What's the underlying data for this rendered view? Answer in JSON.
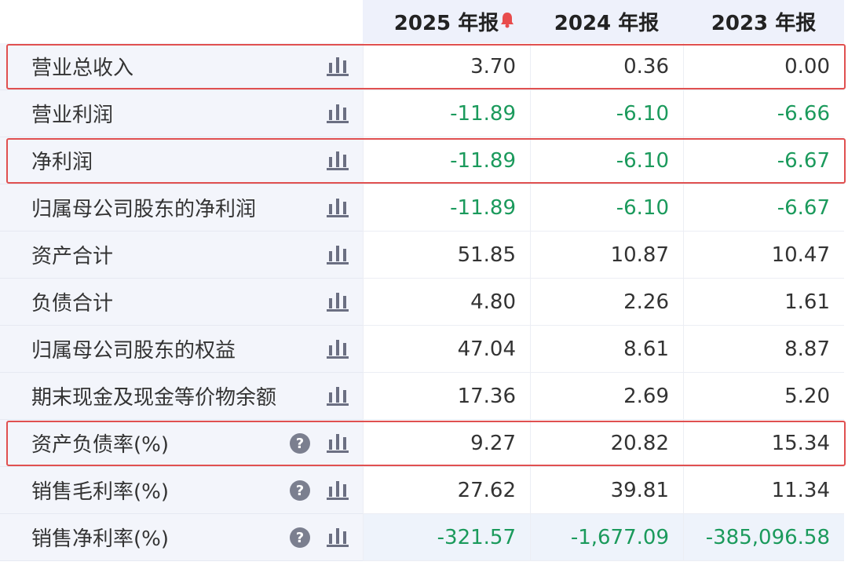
{
  "header": {
    "columns": [
      "2025 年报",
      "2024 年报",
      "2023 年报"
    ]
  },
  "table": {
    "rows": [
      {
        "label": "营业总收入",
        "values": [
          "3.70",
          "0.36",
          "0.00"
        ],
        "highlight": true,
        "help": false
      },
      {
        "label": "营业利润",
        "values": [
          "-11.89",
          "-6.10",
          "-6.66"
        ],
        "highlight": false,
        "help": false
      },
      {
        "label": "净利润",
        "values": [
          "-11.89",
          "-6.10",
          "-6.67"
        ],
        "highlight": true,
        "help": false
      },
      {
        "label": "归属母公司股东的净利润",
        "values": [
          "-11.89",
          "-6.10",
          "-6.67"
        ],
        "highlight": false,
        "help": false
      },
      {
        "label": "资产合计",
        "values": [
          "51.85",
          "10.87",
          "10.47"
        ],
        "highlight": false,
        "help": false
      },
      {
        "label": "负债合计",
        "values": [
          "4.80",
          "2.26",
          "1.61"
        ],
        "highlight": false,
        "help": false
      },
      {
        "label": "归属母公司股东的权益",
        "values": [
          "47.04",
          "8.61",
          "8.87"
        ],
        "highlight": false,
        "help": false
      },
      {
        "label": "期末现金及现金等价物余额",
        "values": [
          "17.36",
          "2.69",
          "5.20"
        ],
        "highlight": false,
        "help": false
      },
      {
        "label": "资产负债率(%)",
        "values": [
          "9.27",
          "20.82",
          "15.34"
        ],
        "highlight": true,
        "help": true
      },
      {
        "label": "销售毛利率(%)",
        "values": [
          "27.62",
          "39.81",
          "11.34"
        ],
        "highlight": false,
        "help": true
      },
      {
        "label": "销售净利率(%)",
        "values": [
          "-321.57",
          "-1,677.09",
          "-385,096.58"
        ],
        "highlight": false,
        "help": true
      }
    ]
  }
}
